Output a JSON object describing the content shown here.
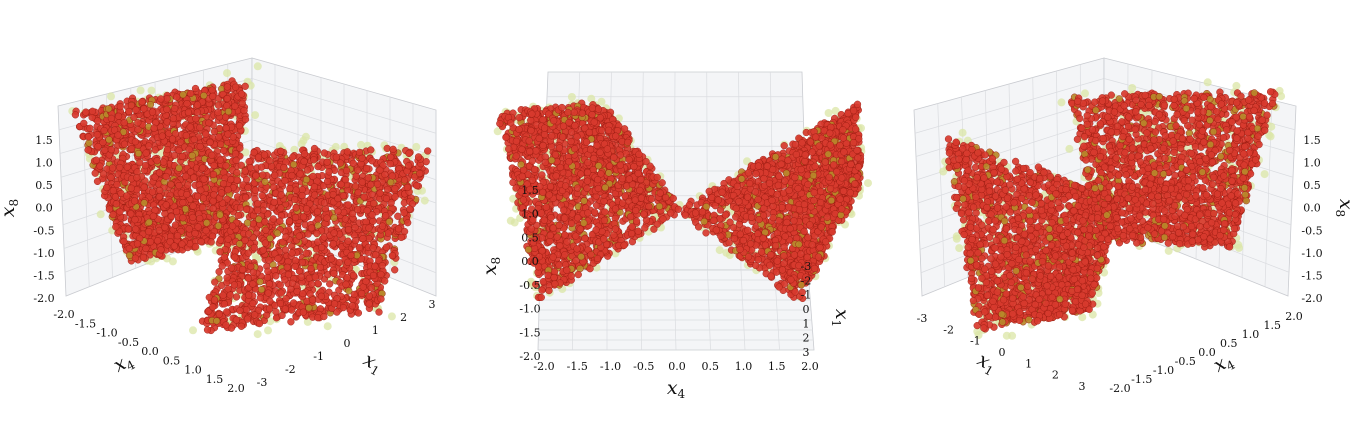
{
  "chart_data": [
    {
      "type": "scatter",
      "view": "left",
      "axes": {
        "x": {
          "var": "x",
          "sub": "1",
          "ticks": [
            "-3",
            "-2",
            "-1",
            "0",
            "1",
            "2",
            "3"
          ],
          "lim": [
            -3,
            3
          ]
        },
        "y": {
          "var": "x",
          "sub": "4",
          "ticks": [
            "-2.0",
            "-1.5",
            "-1.0",
            "-0.5",
            "0.0",
            "0.5",
            "1.0",
            "1.5",
            "2.0"
          ],
          "lim": [
            -2,
            2
          ]
        },
        "z": {
          "var": "x",
          "sub": "8",
          "ticks": [
            "-2.0",
            "-1.5",
            "-1.0",
            "-0.5",
            "0.0",
            "0.5",
            "1.0",
            "1.5"
          ],
          "lim": [
            -2,
            1.8
          ]
        }
      },
      "series": [
        {
          "role": "reference",
          "color": "#dbe6a6"
        },
        {
          "role": "generated",
          "color": "#d83a2e"
        }
      ],
      "grid": true
    },
    {
      "type": "scatter",
      "view": "center",
      "axes": {
        "x": {
          "var": "x",
          "sub": "4",
          "ticks": [
            "-2.0",
            "-1.5",
            "-1.0",
            "-0.5",
            "0.0",
            "0.5",
            "1.0",
            "1.5",
            "2.0"
          ],
          "lim": [
            -2,
            2
          ]
        },
        "y": {
          "var": "x",
          "sub": "1",
          "ticks": [
            "-3",
            "-2",
            "-1",
            "0",
            "1",
            "2",
            "3"
          ],
          "lim": [
            -3,
            3
          ]
        },
        "z": {
          "var": "x",
          "sub": "8",
          "ticks": [
            "-2.0",
            "-1.5",
            "-1.0",
            "-0.5",
            "0.0",
            "0.5",
            "1.0",
            "1.5"
          ],
          "lim": [
            -2,
            1.8
          ]
        }
      },
      "series": [
        {
          "role": "reference",
          "color": "#dbe6a6"
        },
        {
          "role": "generated",
          "color": "#d83a2e"
        }
      ],
      "grid": true
    },
    {
      "type": "scatter",
      "view": "right",
      "axes": {
        "x": {
          "var": "x",
          "sub": "1",
          "ticks": [
            "-3",
            "-2",
            "-1",
            "0",
            "1",
            "2",
            "3"
          ],
          "lim": [
            -3,
            3
          ]
        },
        "y": {
          "var": "x",
          "sub": "4",
          "ticks": [
            "-2.0",
            "-1.5",
            "-1.0",
            "-0.5",
            "0.0",
            "0.5",
            "1.0",
            "1.5",
            "2.0"
          ],
          "lim": [
            -2,
            2
          ]
        },
        "z": {
          "var": "x",
          "sub": "8",
          "ticks": [
            "-2.0",
            "-1.5",
            "-1.0",
            "-0.5",
            "0.0",
            "0.5",
            "1.0",
            "1.5"
          ],
          "lim": [
            -2,
            1.8
          ]
        }
      },
      "series": [
        {
          "role": "reference",
          "color": "#dbe6a6"
        },
        {
          "role": "generated",
          "color": "#d83a2e"
        }
      ],
      "grid": true
    }
  ]
}
